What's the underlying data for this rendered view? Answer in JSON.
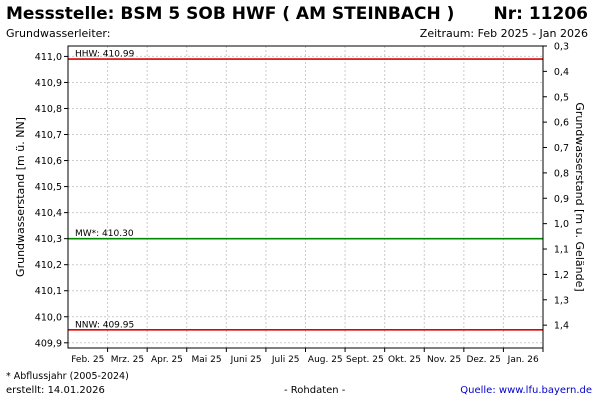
{
  "header": {
    "title": "Messstelle: BSM  5 SOB HWF ( AM STEINBACH )",
    "number": "Nr: 11206",
    "aquifer": "Grundwasserleiter:",
    "period": "Zeitraum: Feb 2025 - Jan 2026"
  },
  "footer": {
    "footnote": "* Abflussjahr (2005-2024)",
    "created": "erstellt:  14.01.2026",
    "rawdata": "- Rohdaten -",
    "source": "Quelle: www.lfu.bayern.de"
  },
  "chart_data": {
    "type": "line",
    "ylabel": "Grundwasserstand [m ü. NN]",
    "ylabel_right": "Grundwasserstand [m u. Gelände]",
    "ylim": [
      409.88,
      411.04
    ],
    "y_ticks": [
      409.9,
      410.0,
      410.1,
      410.2,
      410.3,
      410.4,
      410.5,
      410.6,
      410.7,
      410.8,
      410.9,
      411.0
    ],
    "y_tick_labels": [
      "409,9",
      "410,0",
      "410,1",
      "410,2",
      "410,3",
      "410,4",
      "410,5",
      "410,6",
      "410,7",
      "410,8",
      "410,9",
      "411,0"
    ],
    "y2lim": [
      1.49,
      0.3
    ],
    "y2_ticks": [
      0.3,
      0.4,
      0.5,
      0.6,
      0.7,
      0.8,
      0.9,
      1.0,
      1.1,
      1.2,
      1.3,
      1.4
    ],
    "y2_tick_labels": [
      "0,3",
      "0,4",
      "0,5",
      "0,6",
      "0,7",
      "0,8",
      "0,9",
      "1,0",
      "1,1",
      "1,2",
      "1,3",
      "1,4"
    ],
    "x_tick_labels": [
      "Feb. 25",
      "Mrz. 25",
      "Apr. 25",
      "Mai 25",
      "Juni 25",
      "Juli 25",
      "Aug. 25",
      "Sept. 25",
      "Okt. 25",
      "Nov. 25",
      "Dez. 25",
      "Jan. 26"
    ],
    "grid": true,
    "reference_lines": [
      {
        "label": "HHW: 410.99",
        "value": 410.99,
        "color": "#e00000"
      },
      {
        "label": "MW*: 410.30",
        "value": 410.3,
        "color": "#008800"
      },
      {
        "label": "NNW: 409.95",
        "value": 409.95,
        "color": "#e00000"
      }
    ]
  }
}
